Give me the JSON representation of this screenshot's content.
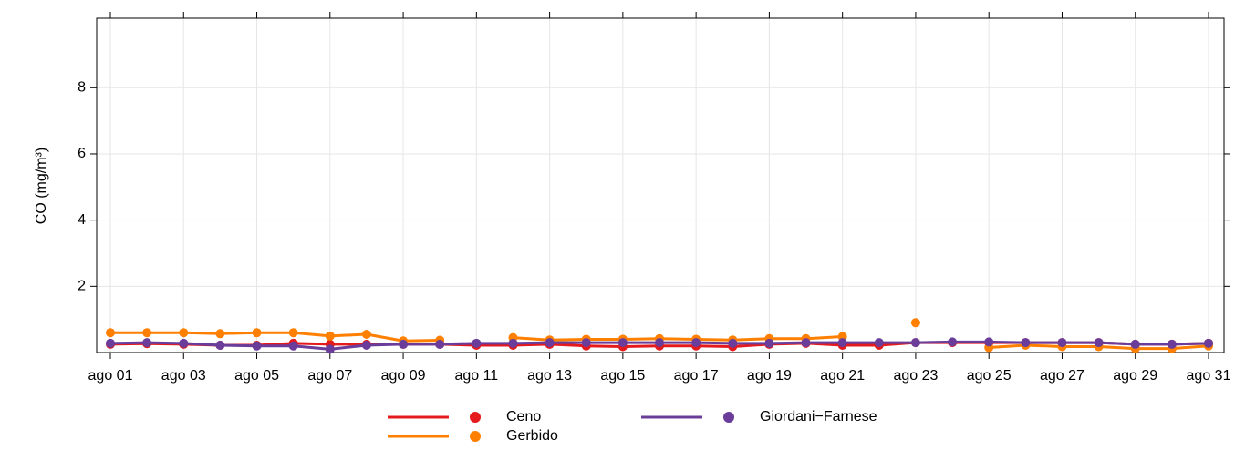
{
  "chart_data": {
    "type": "line",
    "ylabel": "CO (mg/m³)",
    "categories": [
      "ago 01",
      null,
      "ago 03",
      null,
      "ago 05",
      null,
      "ago 07",
      null,
      "ago 09",
      null,
      "ago 11",
      null,
      "ago 13",
      null,
      "ago 15",
      null,
      "ago 17",
      null,
      "ago 19",
      null,
      "ago 21",
      null,
      "ago 23",
      null,
      "ago 25",
      null,
      "ago 27",
      null,
      "ago 29",
      null,
      "ago 31"
    ],
    "series": [
      {
        "name": "Ceno",
        "color": "#e41a1c",
        "values": [
          0.25,
          0.27,
          0.25,
          0.22,
          0.22,
          0.28,
          0.25,
          0.25,
          0.25,
          0.25,
          0.22,
          0.22,
          0.25,
          0.2,
          0.18,
          0.2,
          0.2,
          0.18,
          0.25,
          0.28,
          0.22,
          0.22,
          0.3,
          0.3,
          0.3,
          0.3,
          0.3,
          0.3,
          0.25,
          0.25,
          0.28
        ]
      },
      {
        "name": "Gerbido",
        "color": "#ff7f00",
        "values": [
          0.6,
          0.6,
          0.6,
          0.57,
          0.6,
          0.6,
          0.5,
          0.55,
          0.35,
          0.37,
          null,
          0.45,
          0.38,
          0.4,
          0.4,
          0.42,
          0.4,
          0.38,
          0.42,
          0.42,
          0.48,
          null,
          0.9,
          null,
          0.15,
          0.22,
          0.18,
          0.18,
          0.12,
          0.12,
          0.2
        ]
      },
      {
        "name": "Giordani−Farnese",
        "color": "#6a3d9a",
        "values": [
          0.28,
          0.3,
          0.28,
          0.22,
          0.2,
          0.2,
          0.1,
          0.22,
          0.25,
          0.25,
          0.28,
          0.28,
          0.3,
          0.3,
          0.3,
          0.3,
          0.3,
          0.28,
          0.28,
          0.3,
          0.3,
          0.3,
          0.3,
          0.32,
          0.32,
          0.3,
          0.3,
          0.3,
          0.25,
          0.25,
          0.28
        ]
      }
    ],
    "ylim": [
      0,
      10.1
    ],
    "yticks": [
      2,
      4,
      6,
      8
    ],
    "grid": true
  }
}
